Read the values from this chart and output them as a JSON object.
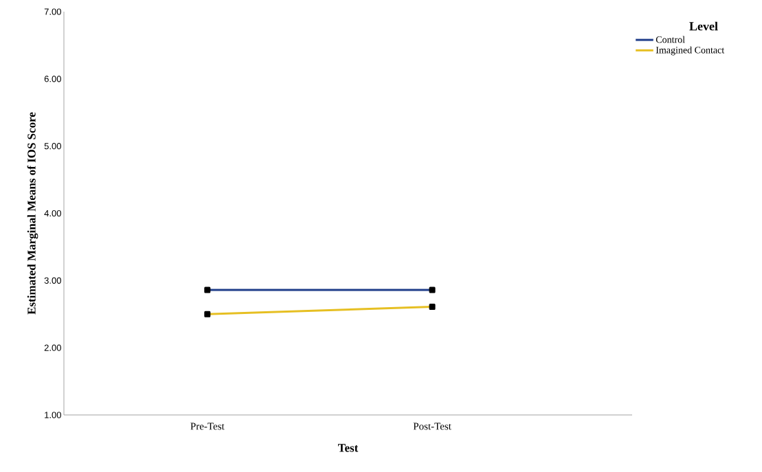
{
  "chart_data": {
    "type": "line",
    "xlabel": "Test",
    "ylabel": "Estimated Marginal Means of IOS Score",
    "legend_title": "Level",
    "categories": [
      "Pre-Test",
      "Post-Test"
    ],
    "series": [
      {
        "name": "Control",
        "color": "#1f3d8a",
        "values": [
          2.86,
          2.86
        ]
      },
      {
        "name": "Imagined Contact",
        "color": "#e6bf22",
        "values": [
          2.5,
          2.61
        ]
      }
    ],
    "ylim": [
      1,
      7
    ],
    "yticks": [
      {
        "value": 1,
        "label": "1.00"
      },
      {
        "value": 2,
        "label": "2.00"
      },
      {
        "value": 3,
        "label": "3.00"
      },
      {
        "value": 4,
        "label": "4.00"
      },
      {
        "value": 5,
        "label": "5.00"
      },
      {
        "value": 6,
        "label": "6.00"
      },
      {
        "value": 7,
        "label": "7.00"
      }
    ],
    "grid": false,
    "legend": "top right",
    "marker": "square",
    "line_style": "solid"
  }
}
